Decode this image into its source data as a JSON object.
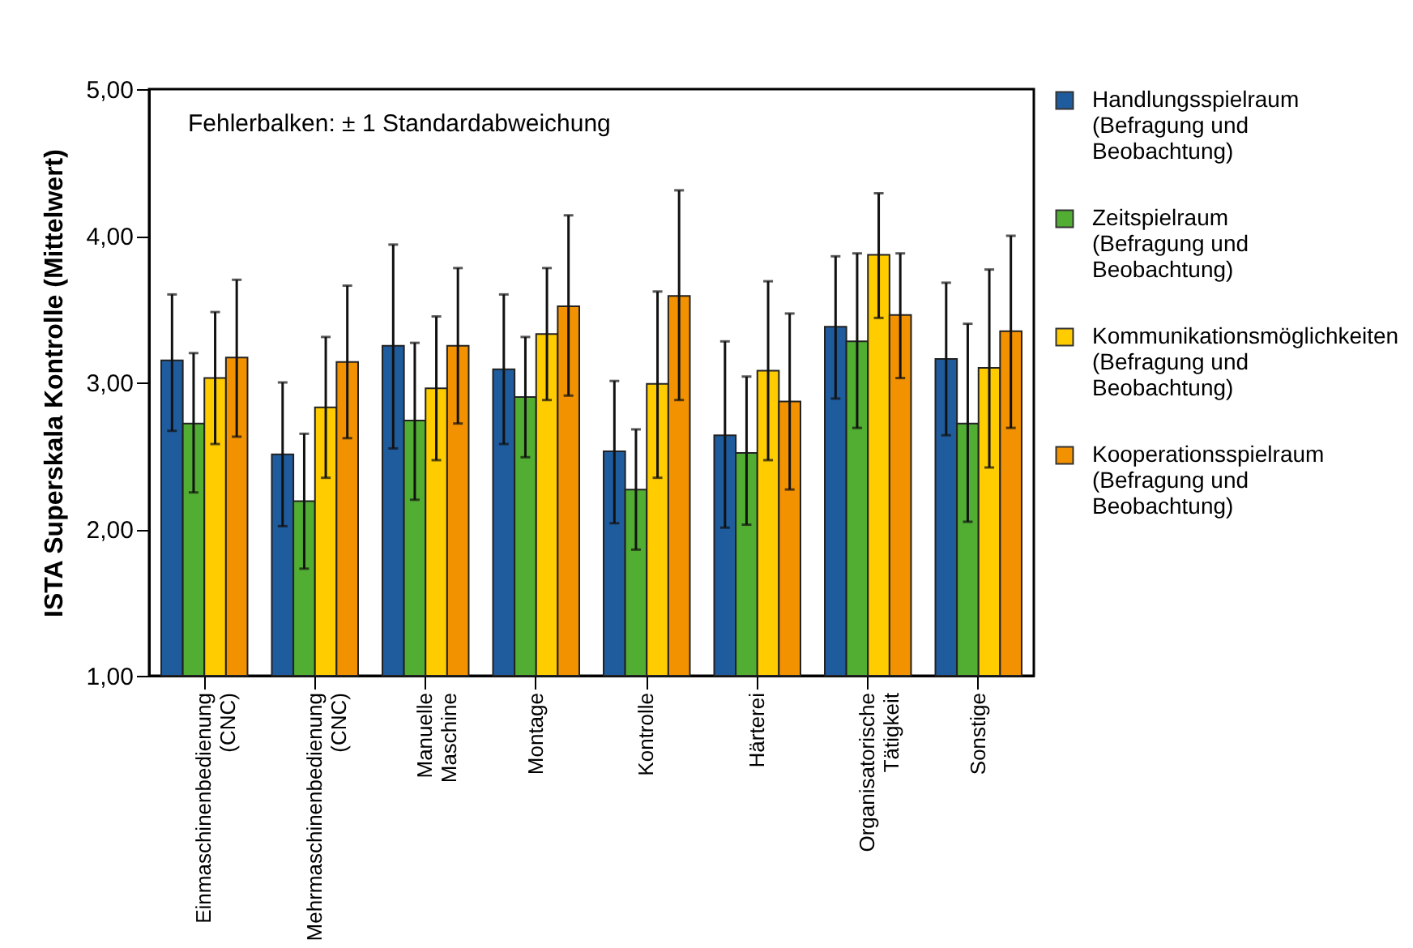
{
  "chart_data": {
    "type": "bar",
    "ylabel": "ISTA Superskala Kontrolle (Mittelwert)",
    "annotations": [
      "Fehlerbalken: ± 1 Standardabweichung"
    ],
    "categories": [
      "Einmaschinenbedienung (CNC)",
      "Mehrmaschinenbedienung (CNC)",
      "Manuelle Maschine",
      "Montage",
      "Kontrolle",
      "Härterei",
      "Organisatorische Tätigkeit",
      "Sonstige"
    ],
    "ylim": [
      1,
      5
    ],
    "yticks": [
      {
        "value": 1,
        "label": "1,00"
      },
      {
        "value": 2,
        "label": "2,00"
      },
      {
        "value": 3,
        "label": "3,00"
      },
      {
        "value": 4,
        "label": "4,00"
      },
      {
        "value": 5,
        "label": "5,00"
      }
    ],
    "grid": false,
    "legend": "right",
    "series": [
      {
        "name": "Handlungsspielraum (Befragung und Beobachtung)",
        "color": "#1f5c9e",
        "values": [
          3.15,
          2.51,
          3.25,
          3.09,
          2.53,
          2.64,
          3.38,
          3.16
        ],
        "errors": [
          [
            2.67,
            3.6
          ],
          [
            2.02,
            3.0
          ],
          [
            2.55,
            3.94
          ],
          [
            2.58,
            3.6
          ],
          [
            2.04,
            3.01
          ],
          [
            2.01,
            3.28
          ],
          [
            2.89,
            3.86
          ],
          [
            2.64,
            3.68
          ]
        ]
      },
      {
        "name": "Zeitspielraum (Befragung und Beobachtung)",
        "color": "#52ae32",
        "values": [
          2.72,
          2.19,
          2.74,
          2.9,
          2.27,
          2.52,
          3.28,
          2.72
        ],
        "errors": [
          [
            2.25,
            3.2
          ],
          [
            1.73,
            2.65
          ],
          [
            2.2,
            3.27
          ],
          [
            2.49,
            3.31
          ],
          [
            1.86,
            2.68
          ],
          [
            2.03,
            3.04
          ],
          [
            2.69,
            3.88
          ],
          [
            2.05,
            3.4
          ]
        ]
      },
      {
        "name": "Kommunikationsmöglichkeiten (Befragung und Beobachtung)",
        "color": "#ffcc00",
        "values": [
          3.03,
          2.83,
          2.96,
          3.33,
          2.99,
          3.08,
          3.87,
          3.1
        ],
        "errors": [
          [
            2.58,
            3.48
          ],
          [
            2.35,
            3.31
          ],
          [
            2.47,
            3.45
          ],
          [
            2.88,
            3.78
          ],
          [
            2.35,
            3.62
          ],
          [
            2.47,
            3.69
          ],
          [
            3.44,
            4.29
          ],
          [
            2.42,
            3.77
          ]
        ]
      },
      {
        "name": "Kooperationsspielraum (Befragung und Beobachtung)",
        "color": "#f39200",
        "values": [
          3.17,
          3.14,
          3.25,
          3.52,
          3.59,
          2.87,
          3.46,
          3.35
        ],
        "errors": [
          [
            2.63,
            3.7
          ],
          [
            2.62,
            3.66
          ],
          [
            2.72,
            3.78
          ],
          [
            2.91,
            4.14
          ],
          [
            2.88,
            4.31
          ],
          [
            2.27,
            3.47
          ],
          [
            3.03,
            3.88
          ],
          [
            2.69,
            4.0
          ]
        ]
      }
    ]
  }
}
